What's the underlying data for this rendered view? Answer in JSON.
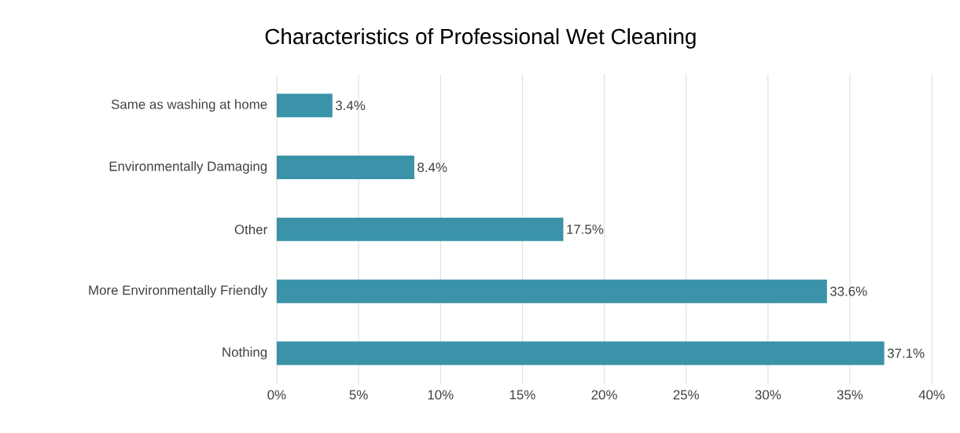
{
  "chart_data": {
    "type": "bar",
    "orientation": "horizontal",
    "title": "Characteristics of Professional Wet Cleaning",
    "categories": [
      "Same as washing at home",
      "Environmentally Damaging",
      "Other",
      "More Environmentally Friendly",
      "Nothing"
    ],
    "values": [
      3.4,
      8.4,
      17.5,
      33.6,
      37.1
    ],
    "value_labels": [
      "3.4%",
      "8.4%",
      "17.5%",
      "33.6%",
      "37.1%"
    ],
    "color": "#3a93a8",
    "xlim": [
      0,
      40
    ],
    "xticks": [
      {
        "value": 0,
        "label": "0%"
      },
      {
        "value": 5,
        "label": "5%"
      },
      {
        "value": 10,
        "label": "10%"
      },
      {
        "value": 15,
        "label": "15%"
      },
      {
        "value": 20,
        "label": "20%"
      },
      {
        "value": 25,
        "label": "25%"
      },
      {
        "value": 30,
        "label": "30%"
      },
      {
        "value": 35,
        "label": "35%"
      },
      {
        "value": 40,
        "label": "40%"
      }
    ],
    "grid": "x"
  }
}
